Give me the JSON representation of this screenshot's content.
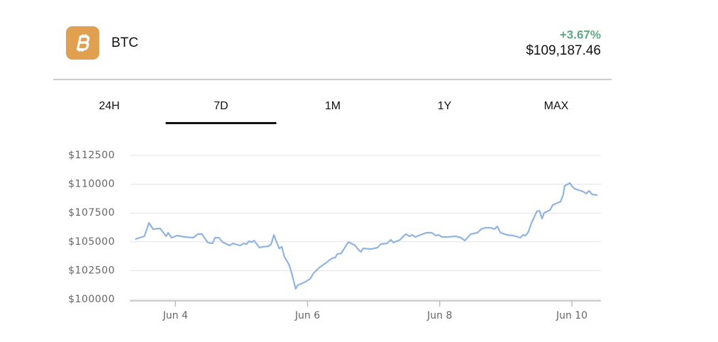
{
  "header": {
    "symbol": "BTC",
    "change": "+3.67%",
    "price": "$109,187.46"
  },
  "tabs": [
    "24H",
    "7D",
    "1M",
    "1Y",
    "MAX"
  ],
  "active_tab": 1,
  "chart_data": {
    "type": "line",
    "color": "#8fb3e3",
    "grid": true,
    "x": [
      3.39,
      3.53,
      3.6,
      3.66,
      3.77,
      3.86,
      3.89,
      3.94,
      4.03,
      4.14,
      4.27,
      4.34,
      4.4,
      4.49,
      4.56,
      4.6,
      4.66,
      4.71,
      4.82,
      4.87,
      4.98,
      5.03,
      5.08,
      5.11,
      5.16,
      5.19,
      5.27,
      5.32,
      5.41,
      5.45,
      5.49,
      5.54,
      5.57,
      5.61,
      5.65,
      5.72,
      5.76,
      5.82,
      5.85,
      5.95,
      6.04,
      6.09,
      6.18,
      6.27,
      6.37,
      6.42,
      6.45,
      6.51,
      6.59,
      6.62,
      6.72,
      6.77,
      6.81,
      6.84,
      6.96,
      7.06,
      7.11,
      7.2,
      7.26,
      7.3,
      7.4,
      7.45,
      7.49,
      7.54,
      7.58,
      7.63,
      7.74,
      7.8,
      7.88,
      7.94,
      7.99,
      8.03,
      8.12,
      8.24,
      8.32,
      8.38,
      8.42,
      8.47,
      8.57,
      8.63,
      8.69,
      8.77,
      8.83,
      8.87,
      8.92,
      9.02,
      9.11,
      9.22,
      9.26,
      9.3,
      9.34,
      9.39,
      9.47,
      9.51,
      9.55,
      9.58,
      9.67,
      9.71,
      9.83,
      9.87,
      9.89,
      9.97,
      10.0,
      10.04,
      10.17,
      10.22,
      10.26,
      10.31,
      10.39
    ],
    "values": [
      105230,
      105480,
      106650,
      106100,
      106160,
      105480,
      105790,
      105360,
      105540,
      105420,
      105360,
      105670,
      105670,
      104930,
      104860,
      105360,
      105360,
      104990,
      104680,
      104860,
      104680,
      104860,
      104800,
      105050,
      104990,
      105110,
      104500,
      104560,
      104620,
      104800,
      105600,
      104860,
      104430,
      104560,
      103690,
      103020,
      102280,
      100920,
      101230,
      101480,
      101790,
      102280,
      102770,
      103140,
      103570,
      103630,
      103940,
      104000,
      104740,
      104990,
      104680,
      104310,
      104130,
      104430,
      104370,
      104500,
      104800,
      104860,
      105170,
      104930,
      105170,
      105480,
      105670,
      105480,
      105600,
      105420,
      105670,
      105790,
      105790,
      105540,
      105600,
      105420,
      105420,
      105480,
      105360,
      105110,
      105360,
      105670,
      105790,
      106100,
      106220,
      106220,
      106100,
      106340,
      105790,
      105600,
      105540,
      105360,
      105600,
      105540,
      105850,
      106650,
      107640,
      107700,
      107020,
      107510,
      107760,
      108190,
      108500,
      109110,
      109850,
      110100,
      109850,
      109610,
      109360,
      109180,
      109420,
      109110,
      109050
    ],
    "xlim": [
      3.31,
      10.44
    ],
    "xticks": [
      {
        "value": 4,
        "label": "Jun 4"
      },
      {
        "value": 6,
        "label": "Jun 6"
      },
      {
        "value": 8,
        "label": "Jun 8"
      },
      {
        "value": 10,
        "label": "Jun 10"
      }
    ],
    "ylim": [
      100000,
      112500
    ],
    "yticks": [
      {
        "value": 100000,
        "label": "$100000"
      },
      {
        "value": 102500,
        "label": "$102500"
      },
      {
        "value": 105000,
        "label": "$105000"
      },
      {
        "value": 107500,
        "label": "$107500"
      },
      {
        "value": 110000,
        "label": "$110000"
      },
      {
        "value": 112500,
        "label": "$112500"
      }
    ]
  }
}
